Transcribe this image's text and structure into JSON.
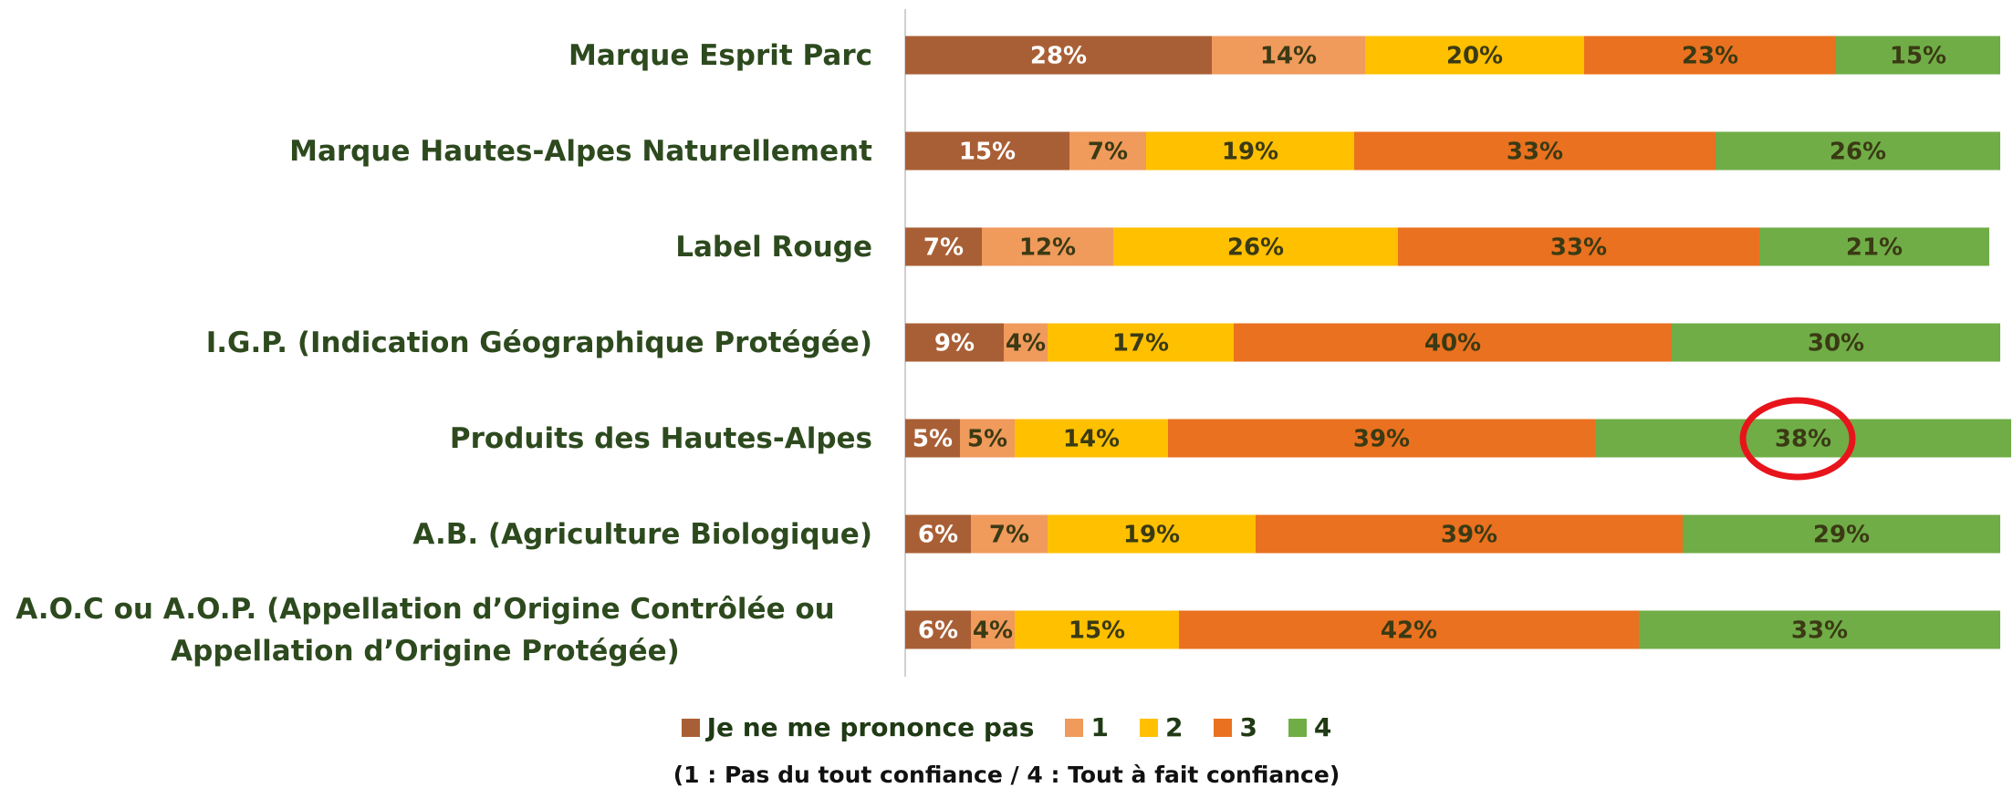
{
  "chart_data": {
    "type": "stacked_barh",
    "categories": [
      "Marque Esprit Parc",
      "Marque Hautes-Alpes Naturellement",
      "Label Rouge",
      "I.G.P. (Indication Géographique Protégée)",
      "Produits des Hautes-Alpes",
      "A.B. (Agriculture Biologique)",
      "A.O.C ou A.O.P. (Appellation d’Origine Contrôlée ou\nAppellation d’Origine Protégée)"
    ],
    "series": [
      {
        "name": "Je ne me prononce pas",
        "color": "#a95f35",
        "values": [
          28,
          15,
          7,
          9,
          5,
          6,
          6
        ],
        "value_labels": [
          "28%",
          "15%",
          "7%",
          "9%",
          "5%",
          "6%",
          "6%"
        ]
      },
      {
        "name": "1",
        "color": "#f09a5c",
        "values": [
          14,
          7,
          12,
          4,
          5,
          7,
          4
        ],
        "value_labels": [
          "14%",
          "7%",
          "12%",
          "4%",
          "5%",
          "7%",
          "4%"
        ]
      },
      {
        "name": "2",
        "color": "#ffc000",
        "values": [
          20,
          19,
          26,
          17,
          14,
          19,
          15
        ],
        "value_labels": [
          "20%",
          "19%",
          "26%",
          "17%",
          "14%",
          "19%",
          "15%"
        ]
      },
      {
        "name": "3",
        "color": "#ea711f",
        "values": [
          23,
          33,
          33,
          40,
          39,
          39,
          42
        ],
        "value_labels": [
          "23%",
          "33%",
          "33%",
          "40%",
          "39%",
          "39%",
          "42%"
        ]
      },
      {
        "name": "4",
        "color": "#70ad47",
        "values": [
          15,
          26,
          21,
          30,
          38,
          29,
          33
        ],
        "value_labels": [
          "15%",
          "26%",
          "21%",
          "30%",
          "38%",
          "29%",
          "33%"
        ]
      }
    ],
    "xlim": [
      0,
      100
    ],
    "note": "(1 : Pas du tout confiance / 4 : Tout à fait confiance)"
  }
}
